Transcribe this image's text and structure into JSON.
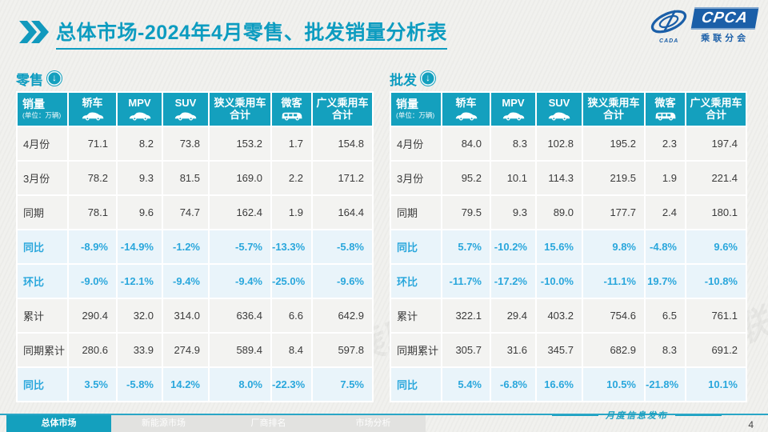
{
  "header": {
    "title": "总体市场-2024年4月零售、批发销量分析表",
    "logo": {
      "cpca": "CPCA",
      "org": "乘联分会",
      "cada": "CADA"
    }
  },
  "icons": {
    "down_arrow": "↓"
  },
  "table_header": {
    "sales_label": "销量",
    "unit_note": "(单位：万辆)",
    "columns": [
      {
        "label": "轿车",
        "icon": "car"
      },
      {
        "label": "MPV",
        "icon": "car"
      },
      {
        "label": "SUV",
        "icon": "car"
      },
      {
        "label": "狭义乘用车\n合计",
        "icon": "none"
      },
      {
        "label": "微客",
        "icon": "van"
      },
      {
        "label": "广义乘用车\n合计",
        "icon": "none"
      }
    ]
  },
  "tables": [
    {
      "section": "零售",
      "rows": [
        {
          "label": "4月份",
          "type": "data",
          "values": [
            "71.1",
            "8.2",
            "73.8",
            "153.2",
            "1.7",
            "154.8"
          ]
        },
        {
          "label": "3月份",
          "type": "data",
          "values": [
            "78.2",
            "9.3",
            "81.5",
            "169.0",
            "2.2",
            "171.2"
          ]
        },
        {
          "label": "同期",
          "type": "data",
          "values": [
            "78.1",
            "9.6",
            "74.7",
            "162.4",
            "1.9",
            "164.4"
          ]
        },
        {
          "label": "同比",
          "type": "pct",
          "values": [
            "-8.9%",
            "-14.9%",
            "-1.2%",
            "-5.7%",
            "-13.3%",
            "-5.8%"
          ]
        },
        {
          "label": "环比",
          "type": "pct",
          "values": [
            "-9.0%",
            "-12.1%",
            "-9.4%",
            "-9.4%",
            "-25.0%",
            "-9.6%"
          ]
        },
        {
          "label": "累计",
          "type": "data",
          "values": [
            "290.4",
            "32.0",
            "314.0",
            "636.4",
            "6.6",
            "642.9"
          ]
        },
        {
          "label": "同期累计",
          "type": "data",
          "values": [
            "280.6",
            "33.9",
            "274.9",
            "589.4",
            "8.4",
            "597.8"
          ]
        },
        {
          "label": "同比",
          "type": "pct",
          "values": [
            "3.5%",
            "-5.8%",
            "14.2%",
            "8.0%",
            "-22.3%",
            "7.5%"
          ]
        }
      ]
    },
    {
      "section": "批发",
      "rows": [
        {
          "label": "4月份",
          "type": "data",
          "values": [
            "84.0",
            "8.3",
            "102.8",
            "195.2",
            "2.3",
            "197.4"
          ]
        },
        {
          "label": "3月份",
          "type": "data",
          "values": [
            "95.2",
            "10.1",
            "114.3",
            "219.5",
            "1.9",
            "221.4"
          ]
        },
        {
          "label": "同期",
          "type": "data",
          "values": [
            "79.5",
            "9.3",
            "89.0",
            "177.7",
            "2.4",
            "180.1"
          ]
        },
        {
          "label": "同比",
          "type": "pct",
          "values": [
            "5.7%",
            "-10.2%",
            "15.6%",
            "9.8%",
            "-4.8%",
            "9.6%"
          ]
        },
        {
          "label": "环比",
          "type": "pct",
          "values": [
            "-11.7%",
            "-17.2%",
            "-10.0%",
            "-11.1%",
            "19.7%",
            "-10.8%"
          ]
        },
        {
          "label": "累计",
          "type": "data",
          "values": [
            "322.1",
            "29.4",
            "403.2",
            "754.6",
            "6.5",
            "761.1"
          ]
        },
        {
          "label": "同期累计",
          "type": "data",
          "values": [
            "305.7",
            "31.6",
            "345.7",
            "682.9",
            "8.3",
            "691.2"
          ]
        },
        {
          "label": "同比",
          "type": "pct",
          "values": [
            "5.4%",
            "-6.8%",
            "16.6%",
            "10.5%",
            "-21.8%",
            "10.1%"
          ]
        }
      ]
    }
  ],
  "footer": {
    "tabs": [
      {
        "label": "总体市场",
        "active": true
      },
      {
        "label": "新能源市场",
        "active": false
      },
      {
        "label": "厂商排名",
        "active": false
      },
      {
        "label": "市场分析",
        "active": false
      }
    ],
    "publish_label": "月度信息发布",
    "page_number": "4"
  },
  "watermark": "CPCA 乘联分会",
  "colors": {
    "teal": "#0d9cc0",
    "header_bg": "#14a0be",
    "pct_blue": "#2aa7dc",
    "pct_row_bg": "#e9f4fa",
    "row_bg": "#f3f3f1",
    "logo_blue": "#1b5fa8"
  }
}
